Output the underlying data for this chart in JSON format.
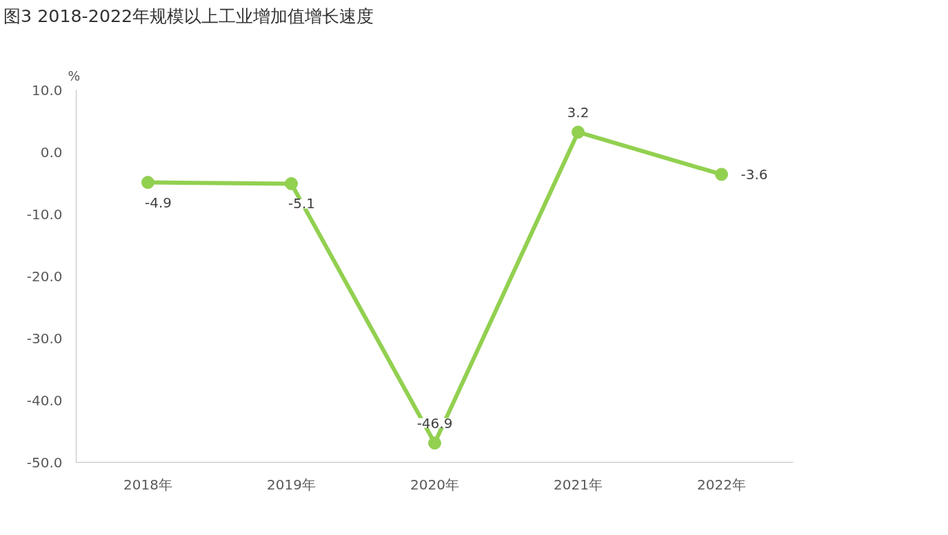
{
  "chart_data": {
    "type": "line",
    "title": "图3 2018-2022年规模以上工业增加值增长速度",
    "ylabel": "%",
    "categories": [
      "2018年",
      "2019年",
      "2020年",
      "2021年",
      "2022年"
    ],
    "series": [
      {
        "color": "#92d050",
        "values": [
          -4.9,
          -5.1,
          -46.9,
          3.2,
          -3.6
        ]
      }
    ],
    "ylim": [
      -50,
      10
    ],
    "yticks": [
      {
        "value": -50,
        "label": "-50.0"
      },
      {
        "value": -40,
        "label": "-40.0"
      },
      {
        "value": -30,
        "label": "-30.0"
      },
      {
        "value": -20,
        "label": "-20.0"
      },
      {
        "value": -10,
        "label": "-10.0"
      },
      {
        "value": 0,
        "label": "0.0"
      },
      {
        "value": 10,
        "label": "10.0"
      }
    ],
    "data_labels": true,
    "marker": "circle",
    "line_style": "solid",
    "grid": false
  }
}
